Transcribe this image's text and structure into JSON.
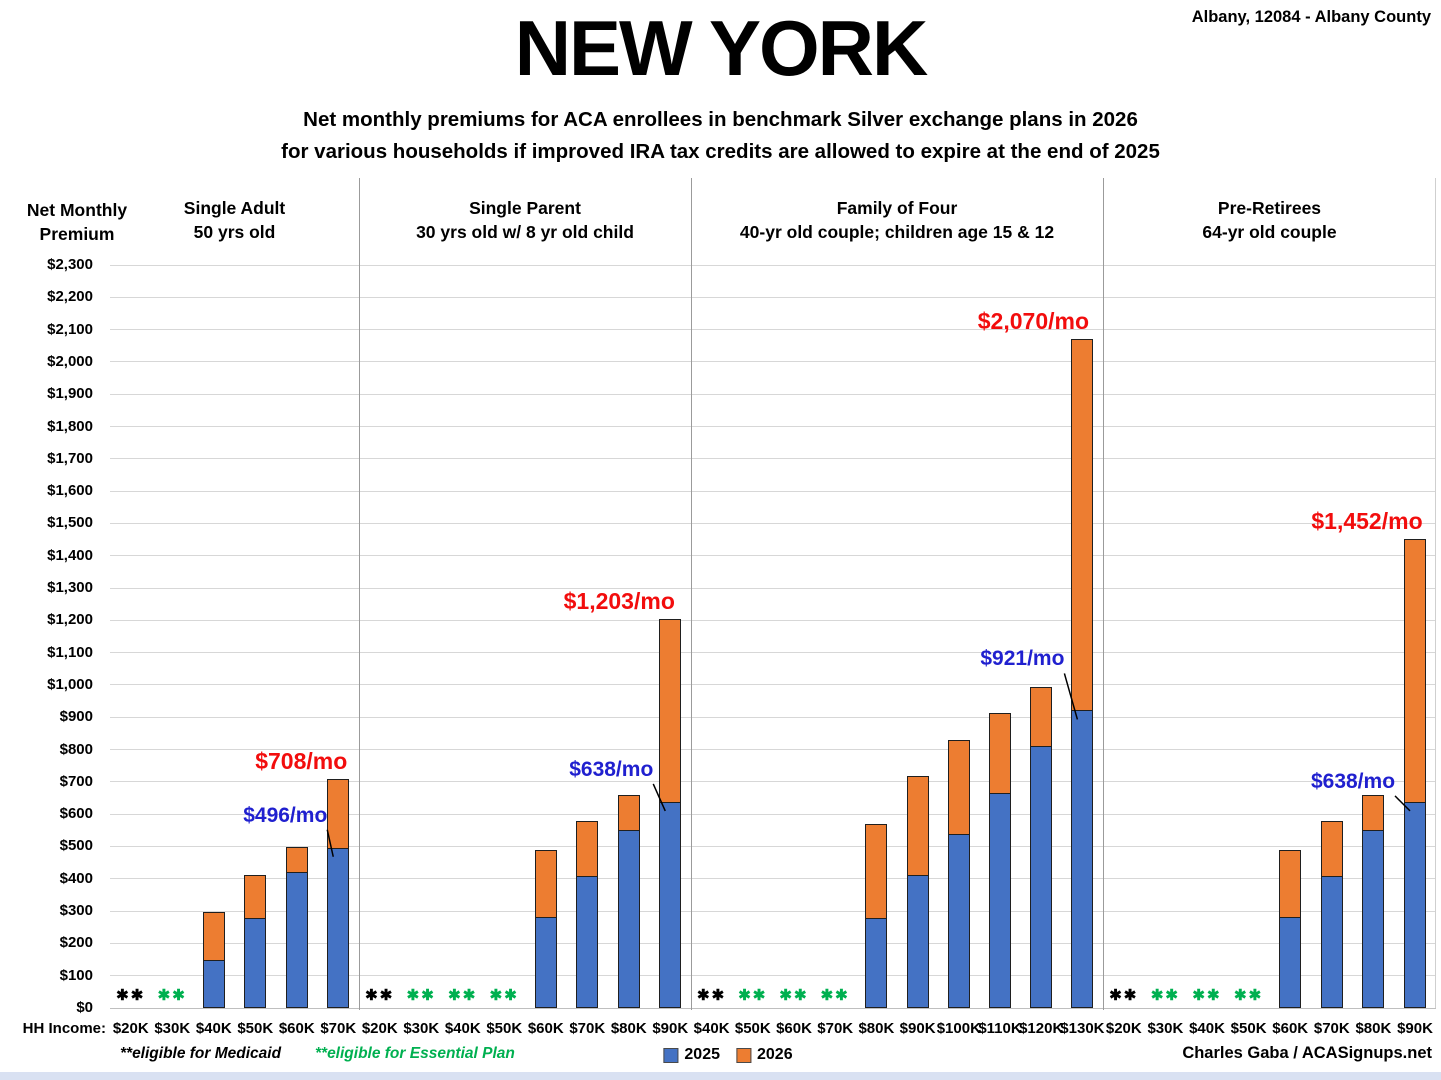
{
  "header": {
    "title": "NEW YORK",
    "location": "Albany, 12084 - Albany County",
    "subtitle1": "Net monthly premiums for ACA enrollees in benchmark Silver exchange plans in 2026",
    "subtitle2": "for various households if improved IRA tax credits are allowed to expire at the end of 2025"
  },
  "y_axis": {
    "label_line1": "Net Monthly",
    "label_line2": "Premium"
  },
  "x_axis": {
    "label": "HH Income:"
  },
  "legend": [
    {
      "label": "2025",
      "color": "#4472C4"
    },
    {
      "label": "2026",
      "color": "#ED7D31"
    }
  ],
  "footnotes": [
    {
      "text": "**eligible for Medicaid",
      "color": "#000000"
    },
    {
      "text": "**eligible for Essential Plan",
      "color": "#00B050"
    }
  ],
  "credit": "Charles Gaba / ACASignups.net",
  "chart_data": {
    "type": "bar",
    "stacked": true,
    "title": "NEW YORK",
    "ylabel": "Net Monthly Premium",
    "xlabel": "HH Income",
    "ylim": [
      0,
      2300
    ],
    "ytick_step": 100,
    "grid": true,
    "legend_position": "bottom-center",
    "series_names": [
      "2025",
      "2026"
    ],
    "colors": {
      "bar_2025": "#4472C4",
      "bar_2026": "#ED7D31",
      "red_label": "#F20D0D",
      "blue_label": "#2020CF",
      "essential_marker": "#00B050",
      "medicaid_marker": "#000000"
    },
    "marker_glyph": "✱✱",
    "groups": [
      {
        "name": "Single Adult",
        "desc": "50 yrs old",
        "incomes": [
          "$20K",
          "$30K",
          "$40K",
          "$50K",
          "$60K",
          "$70K"
        ],
        "markers": [
          "medicaid",
          "essential",
          null,
          null,
          null,
          null
        ],
        "values_2025": [
          null,
          null,
          150,
          280,
          420,
          496
        ],
        "values_2026_total": [
          null,
          null,
          298,
          413,
          498,
          708
        ],
        "annotation": {
          "red_text": "$708/mo",
          "blue_text": "$496/mo",
          "income": "$70K"
        }
      },
      {
        "name": "Single Parent",
        "desc": "30 yrs old w/ 8 yr old child",
        "incomes": [
          "$20K",
          "$30K",
          "$40K",
          "$50K",
          "$60K",
          "$70K",
          "$80K",
          "$90K"
        ],
        "markers": [
          "medicaid",
          "essential",
          "essential",
          "essential",
          null,
          null,
          null,
          null
        ],
        "values_2025": [
          null,
          null,
          null,
          null,
          283,
          410,
          550,
          638
        ],
        "values_2026_total": [
          null,
          null,
          null,
          null,
          488,
          578,
          660,
          1203
        ],
        "annotation": {
          "red_text": "$1,203/mo",
          "blue_text": "$638/mo",
          "income": "$90K"
        }
      },
      {
        "name": "Family of Four",
        "desc": "40-yr old couple; children age 15 & 12",
        "incomes": [
          "$40K",
          "$50K",
          "$60K",
          "$70K",
          "$80K",
          "$90K",
          "$100K",
          "$110K",
          "$120K",
          "$130K"
        ],
        "markers": [
          "medicaid",
          "essential",
          "essential",
          "essential",
          null,
          null,
          null,
          null,
          null,
          null
        ],
        "values_2025": [
          null,
          null,
          null,
          null,
          280,
          413,
          540,
          665,
          810,
          921
        ],
        "values_2026_total": [
          null,
          null,
          null,
          null,
          570,
          717,
          830,
          912,
          993,
          2070
        ],
        "annotation": {
          "red_text": "$2,070/mo",
          "blue_text": "$921/mo",
          "income": "$130K"
        }
      },
      {
        "name": "Pre-Retirees",
        "desc": "64-yr old couple",
        "incomes": [
          "$20K",
          "$30K",
          "$40K",
          "$50K",
          "$60K",
          "$70K",
          "$80K",
          "$90K"
        ],
        "markers": [
          "medicaid",
          "essential",
          "essential",
          "essential",
          null,
          null,
          null,
          null
        ],
        "values_2025": [
          null,
          null,
          null,
          null,
          283,
          410,
          550,
          638
        ],
        "values_2026_total": [
          null,
          null,
          null,
          null,
          488,
          578,
          660,
          1452
        ],
        "annotation": {
          "red_text": "$1,452/mo",
          "blue_text": "$638/mo",
          "income": "$90K"
        }
      }
    ]
  }
}
